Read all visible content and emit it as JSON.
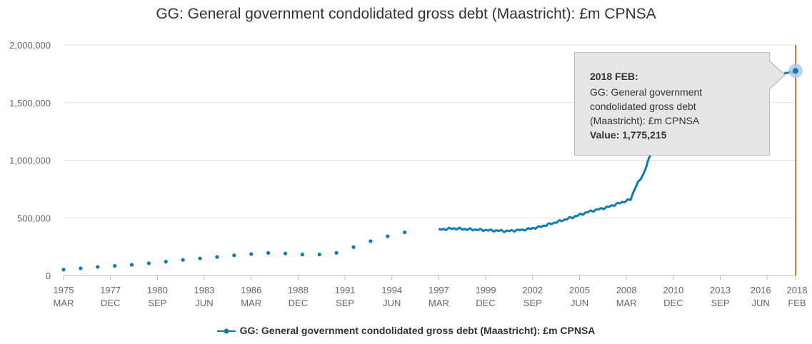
{
  "chart_data": {
    "type": "line",
    "title": "GG: General government condolidated gross debt (Maastricht): £m CPNSA",
    "series": [
      {
        "name": "GG: General government condolidated gross debt (Maastricht): £m CPNSA",
        "color": "#0f7ab4",
        "annual_points": [
          [
            "1975",
            51000
          ],
          [
            "1976",
            62000
          ],
          [
            "1977",
            74000
          ],
          [
            "1978",
            84000
          ],
          [
            "1979",
            93000
          ],
          [
            "1980",
            106000
          ],
          [
            "1981",
            120000
          ],
          [
            "1982",
            135000
          ],
          [
            "1983",
            148000
          ],
          [
            "1984",
            161000
          ],
          [
            "1985",
            175000
          ],
          [
            "1986",
            186000
          ],
          [
            "1987",
            195000
          ],
          [
            "1988",
            191000
          ],
          [
            "1989",
            182000
          ],
          [
            "1990",
            182000
          ],
          [
            "1991",
            196000
          ],
          [
            "1992",
            246000
          ],
          [
            "1993",
            298000
          ],
          [
            "1994",
            340000
          ],
          [
            "1995",
            374000
          ]
        ],
        "monthly_anchors": [
          [
            "1997-03",
            398000
          ],
          [
            "1998-01",
            408000
          ],
          [
            "1999-01",
            400000
          ],
          [
            "2000-01",
            393000
          ],
          [
            "2001-03",
            385000
          ],
          [
            "2002-03",
            397000
          ],
          [
            "2003-01",
            418000
          ],
          [
            "2004-01",
            460000
          ],
          [
            "2005-01",
            505000
          ],
          [
            "2006-01",
            555000
          ],
          [
            "2007-01",
            590000
          ],
          [
            "2008-01",
            640000
          ],
          [
            "2008-06",
            660000
          ],
          [
            "2008-09",
            760000
          ],
          [
            "2009-03",
            880000
          ],
          [
            "2009-08",
            1050000
          ],
          [
            "2010-03",
            1200000
          ],
          [
            "2011-01",
            1350000
          ],
          [
            "2012-01",
            1450000
          ],
          [
            "2013-01",
            1530000
          ],
          [
            "2014-01",
            1580000
          ],
          [
            "2015-01",
            1640000
          ],
          [
            "2016-01",
            1680000
          ],
          [
            "2016-06",
            1700000
          ],
          [
            "2017-01",
            1730000
          ],
          [
            "2017-09",
            1760000
          ],
          [
            "2018-02",
            1775215
          ]
        ]
      }
    ],
    "x_ticks": [
      {
        "year": "1975",
        "sub": "MAR"
      },
      {
        "year": "1977",
        "sub": "DEC"
      },
      {
        "year": "1980",
        "sub": "SEP"
      },
      {
        "year": "1983",
        "sub": "JUN"
      },
      {
        "year": "1986",
        "sub": "MAR"
      },
      {
        "year": "1988",
        "sub": "DEC"
      },
      {
        "year": "1991",
        "sub": "SEP"
      },
      {
        "year": "1994",
        "sub": "JUN"
      },
      {
        "year": "1997",
        "sub": "MAR"
      },
      {
        "year": "1999",
        "sub": "DEC"
      },
      {
        "year": "2002",
        "sub": "SEP"
      },
      {
        "year": "2005",
        "sub": "JUN"
      },
      {
        "year": "2008",
        "sub": "MAR"
      },
      {
        "year": "2010",
        "sub": "DEC"
      },
      {
        "year": "2013",
        "sub": "SEP"
      },
      {
        "year": "2016",
        "sub": "JUN"
      },
      {
        "year": "2018",
        "sub": "FEB"
      }
    ],
    "y_ticks": [
      "0",
      "500,000",
      "1,000,000",
      "1,500,000",
      "2,000,000"
    ],
    "ylim": [
      0,
      2000000
    ],
    "xlim": [
      "1975-03",
      "2018-02"
    ],
    "grid": true,
    "legend_position": "bottom",
    "highlight": {
      "date": "2018-02",
      "color": "#e8772e"
    }
  },
  "tooltip": {
    "header": "2018 FEB:",
    "series_line1": "GG: General government",
    "series_line2": "condolidated gross debt",
    "series_line3": "(Maastricht): £m CPNSA",
    "value_label": "Value: 1,775,215"
  }
}
